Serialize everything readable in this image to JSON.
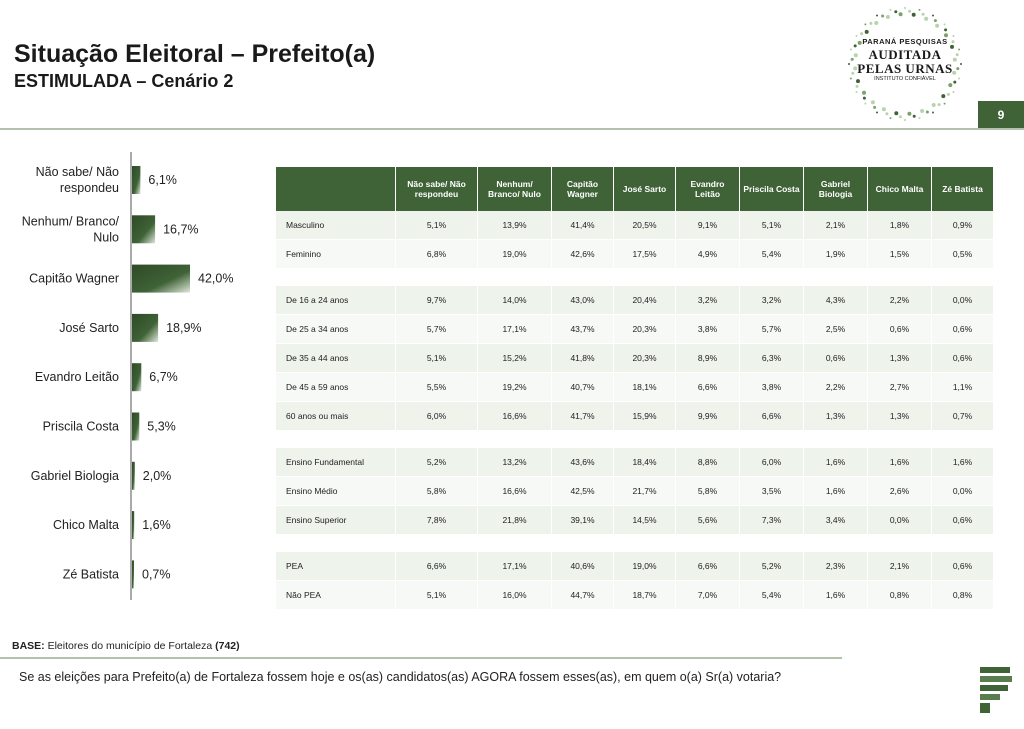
{
  "header": {
    "title": "Situação Eleitoral – Prefeito(a)",
    "subtitle": "ESTIMULADA – Cenário 2",
    "page_number": "9"
  },
  "logo": {
    "line1": "PARANÁ PESQUISAS",
    "line2": "AUDITADA",
    "line3": "PELAS URNAS",
    "line4": "INSTITUTO CONFIÁVEL"
  },
  "chart_data": {
    "type": "bar",
    "orientation": "horizontal",
    "categories": [
      "Não sabe/ Não respondeu",
      "Nenhum/ Branco/ Nulo",
      "Capitão Wagner",
      "José Sarto",
      "Evandro Leitão",
      "Priscila Costa",
      "Gabriel Biologia",
      "Chico Malta",
      "Zé Batista"
    ],
    "category_lines": [
      [
        "Não sabe/ Não",
        "respondeu"
      ],
      [
        "Nenhum/ Branco/",
        "Nulo"
      ],
      [
        "Capitão Wagner"
      ],
      [
        "José Sarto"
      ],
      [
        "Evandro Leitão"
      ],
      [
        "Priscila Costa"
      ],
      [
        "Gabriel Biologia"
      ],
      [
        "Chico Malta"
      ],
      [
        "Zé Batista"
      ]
    ],
    "values": [
      6.1,
      16.7,
      42.0,
      18.9,
      6.7,
      5.3,
      2.0,
      1.6,
      0.7
    ],
    "value_labels": [
      "6,1%",
      "16,7%",
      "42,0%",
      "18,9%",
      "6,7%",
      "5,3%",
      "2,0%",
      "1,6%",
      "0,7%"
    ],
    "xlim": [
      0,
      42.0
    ],
    "unit": "%",
    "bar_color": "#3f6236"
  },
  "table": {
    "columns": [
      "Não sabe/ Não respondeu",
      "Nenhum/ Branco/ Nulo",
      "Capitão Wagner",
      "José Sarto",
      "Evandro Leitão",
      "Priscila Costa",
      "Gabriel Biologia",
      "Chico Malta",
      "Zé Batista"
    ],
    "groups": [
      {
        "rows": [
          {
            "label": "Masculino",
            "values": [
              "5,1%",
              "13,9%",
              "41,4%",
              "20,5%",
              "9,1%",
              "5,1%",
              "2,1%",
              "1,8%",
              "0,9%"
            ]
          },
          {
            "label": "Feminino",
            "values": [
              "6,8%",
              "19,0%",
              "42,6%",
              "17,5%",
              "4,9%",
              "5,4%",
              "1,9%",
              "1,5%",
              "0,5%"
            ]
          }
        ]
      },
      {
        "rows": [
          {
            "label": "De 16 a 24 anos",
            "values": [
              "9,7%",
              "14,0%",
              "43,0%",
              "20,4%",
              "3,2%",
              "3,2%",
              "4,3%",
              "2,2%",
              "0,0%"
            ]
          },
          {
            "label": "De 25 a 34 anos",
            "values": [
              "5,7%",
              "17,1%",
              "43,7%",
              "20,3%",
              "3,8%",
              "5,7%",
              "2,5%",
              "0,6%",
              "0,6%"
            ]
          },
          {
            "label": "De 35 a 44 anos",
            "values": [
              "5,1%",
              "15,2%",
              "41,8%",
              "20,3%",
              "8,9%",
              "6,3%",
              "0,6%",
              "1,3%",
              "0,6%"
            ]
          },
          {
            "label": "De 45 a 59 anos",
            "values": [
              "5,5%",
              "19,2%",
              "40,7%",
              "18,1%",
              "6,6%",
              "3,8%",
              "2,2%",
              "2,7%",
              "1,1%"
            ]
          },
          {
            "label": "60 anos ou mais",
            "values": [
              "6,0%",
              "16,6%",
              "41,7%",
              "15,9%",
              "9,9%",
              "6,6%",
              "1,3%",
              "1,3%",
              "0,7%"
            ]
          }
        ]
      },
      {
        "rows": [
          {
            "label": "Ensino Fundamental",
            "values": [
              "5,2%",
              "13,2%",
              "43,6%",
              "18,4%",
              "8,8%",
              "6,0%",
              "1,6%",
              "1,6%",
              "1,6%"
            ]
          },
          {
            "label": "Ensino Médio",
            "values": [
              "5,8%",
              "16,6%",
              "42,5%",
              "21,7%",
              "5,8%",
              "3,5%",
              "1,6%",
              "2,6%",
              "0,0%"
            ]
          },
          {
            "label": "Ensino Superior",
            "values": [
              "7,8%",
              "21,8%",
              "39,1%",
              "14,5%",
              "5,6%",
              "7,3%",
              "3,4%",
              "0,0%",
              "0,6%"
            ]
          }
        ]
      },
      {
        "rows": [
          {
            "label": "PEA",
            "values": [
              "6,6%",
              "17,1%",
              "40,6%",
              "19,0%",
              "6,6%",
              "5,2%",
              "2,3%",
              "2,1%",
              "0,6%"
            ]
          },
          {
            "label": "Não PEA",
            "values": [
              "5,1%",
              "16,0%",
              "44,7%",
              "18,7%",
              "7,0%",
              "5,4%",
              "1,6%",
              "0,8%",
              "0,8%"
            ]
          }
        ]
      }
    ]
  },
  "footer": {
    "base_label": "BASE:",
    "base_text": "Eleitores do município de Fortaleza",
    "base_count": "(742)",
    "question": "Se as eleições para Prefeito(a) de Fortaleza fossem hoje e os(as) candidatos(as) AGORA fossem esses(as), em quem o(a) Sr(a) votaria?"
  }
}
